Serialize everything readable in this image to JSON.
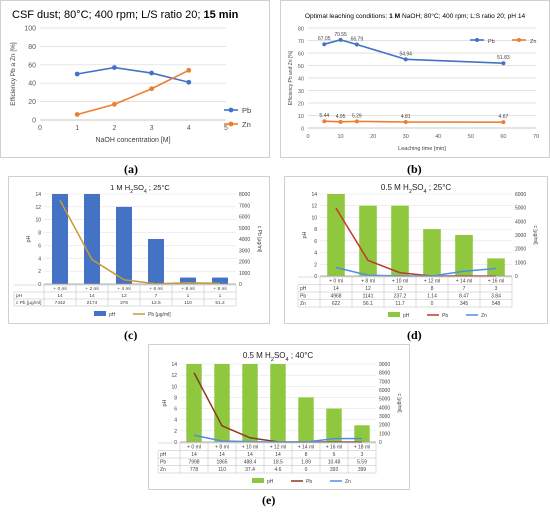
{
  "captions": {
    "a": "(a)",
    "b": "(b)",
    "c": "(c)",
    "d": "(d)",
    "e": "(e)"
  },
  "chart_data": [
    {
      "id": "a",
      "type": "line",
      "title": "CSF dust;  80°C; 400 rpm; L/S ratio 20; ",
      "title_bold": "15 min",
      "xlabel": "NaOH concentration [M]",
      "ylabel": "Efficiency Pb a Zn [%]",
      "x": [
        1,
        2,
        3,
        4
      ],
      "xlim": [
        0,
        5
      ],
      "ylim": [
        0,
        100
      ],
      "yticks": [
        0,
        20,
        40,
        60,
        80,
        100
      ],
      "xticks": [
        0,
        1,
        2,
        3,
        4,
        5
      ],
      "grid": true,
      "legend_position": "right",
      "series": [
        {
          "name": "Pb",
          "values": [
            50,
            57,
            51,
            41
          ],
          "color": "#4472c4"
        },
        {
          "name": "Zn",
          "values": [
            6,
            17,
            34,
            54
          ],
          "color": "#ed7d31"
        }
      ]
    },
    {
      "id": "b",
      "type": "line",
      "title_prefix": "Optimal leaching conditions: ",
      "title_bold": "1 M",
      "title": " NaOH;  80°C; 400 rpm; L:S ratio 20; pH 14",
      "xlabel": "Leaching time [min]",
      "ylabel": "Efficiency Pb and Zn [%]",
      "x": [
        5,
        10,
        15,
        30,
        60
      ],
      "xlim": [
        0,
        70
      ],
      "ylim": [
        0,
        80
      ],
      "yticks": [
        0,
        10,
        20,
        30,
        40,
        50,
        60,
        70,
        80
      ],
      "xticks": [
        0,
        10,
        20,
        30,
        40,
        50,
        60,
        70
      ],
      "grid": true,
      "legend_position": "top-right",
      "series": [
        {
          "name": "Pb",
          "values": [
            67.05,
            70.55,
            66.79,
            54.94,
            51.83
          ],
          "labels": [
            "67.05",
            "70.55",
            "66.79",
            "54.94",
            "51.83"
          ],
          "color": "#4472c4"
        },
        {
          "name": "Zn",
          "values": [
            5.44,
            4.95,
            5.29,
            4.81,
            4.67
          ],
          "labels": [
            "5.44",
            "4.95",
            "5.29",
            "4.81",
            "4.67"
          ],
          "color": "#ed7d31"
        }
      ]
    },
    {
      "id": "c",
      "type": "bar",
      "title": "1 M H2SO4 ; 25°C",
      "ylabel": "pH",
      "y2label": "c Pb [μg/ml]",
      "categories": [
        "+ 0 ml",
        "+ 2 ml",
        "+ 4 ml",
        "+ 6 ml",
        "+ 8 ml",
        "+ 8 ml"
      ],
      "ylim": [
        0,
        14
      ],
      "yticks": [
        0,
        2,
        4,
        6,
        8,
        10,
        12,
        14
      ],
      "y2lim": [
        0,
        8000
      ],
      "y2ticks": [
        0,
        1000,
        2000,
        3000,
        4000,
        5000,
        6000,
        7000,
        8000
      ],
      "bar_series": {
        "name": "pH",
        "values": [
          14,
          14,
          12,
          7,
          1,
          1
        ],
        "labels": [
          "14",
          "14",
          "12",
          "7",
          "1",
          "1"
        ],
        "color": "#4472c4"
      },
      "line_series": [
        {
          "name": "Pb [μg/ml]",
          "values": [
            7442,
            2174,
            376,
            12.5,
            110,
            51.2
          ],
          "labels": [
            "7442",
            "2174",
            "376",
            "12.5",
            "110",
            "51.2"
          ],
          "row_label": "c Pb [μg/ml]",
          "color": "#c59a3a"
        }
      ],
      "legend_position": "bottom"
    },
    {
      "id": "d",
      "type": "bar",
      "title": "0.5 M H2SO4 ; 25°C",
      "ylabel": "pH",
      "y2label": "c [μg/ml]",
      "categories": [
        "+ 0 ml",
        "+ 8 ml",
        "+ 10 ml",
        "+ 12 ml",
        "+ 14 ml",
        "+ 16 ml"
      ],
      "ylim": [
        0,
        14
      ],
      "yticks": [
        0,
        2,
        4,
        6,
        8,
        10,
        12,
        14
      ],
      "y2lim": [
        0,
        6000
      ],
      "y2ticks": [
        0,
        1000,
        2000,
        3000,
        4000,
        5000,
        6000
      ],
      "bar_series": {
        "name": "pH",
        "values": [
          14,
          12,
          12,
          8,
          7,
          3
        ],
        "labels": [
          "14",
          "12",
          "12",
          "8",
          "7",
          "3"
        ],
        "color": "#8fc73e"
      },
      "line_series": [
        {
          "name": "Pb",
          "values": [
            4968,
            1141,
            237.2,
            1.14,
            8.47,
            3.84
          ],
          "labels": [
            "4968",
            "1141",
            "237.2",
            "1.14",
            "8.47",
            "3.84"
          ],
          "color": "#c0392b"
        },
        {
          "name": "Zn",
          "values": [
            622,
            56.1,
            11.7,
            0,
            345,
            548
          ],
          "labels": [
            "622",
            "56.1",
            "11.7",
            "0",
            "345",
            "548"
          ],
          "color": "#4a90e2"
        }
      ],
      "legend_position": "bottom"
    },
    {
      "id": "e",
      "type": "bar",
      "title": "0.5 M H2SO4 ; 40°C",
      "ylabel": "pH",
      "y2label": "c [μg/ml]",
      "categories": [
        "+ 0 ml",
        "+ 8 ml",
        "+ 10 ml",
        "+ 12 ml",
        "+ 14 ml",
        "+ 16 ml",
        "+ 18 ml"
      ],
      "ylim": [
        0,
        14
      ],
      "yticks": [
        0,
        2,
        4,
        6,
        8,
        10,
        12,
        14
      ],
      "y2lim": [
        0,
        9000
      ],
      "y2ticks": [
        0,
        1000,
        2000,
        3000,
        4000,
        5000,
        6000,
        7000,
        8000,
        9000
      ],
      "bar_series": {
        "name": "pH",
        "values": [
          14,
          14,
          14,
          14,
          8,
          6,
          3
        ],
        "labels": [
          "14",
          "14",
          "14",
          "14",
          "8",
          "6",
          "3"
        ],
        "color": "#8fc73e"
      },
      "line_series": [
        {
          "name": "Pb",
          "values": [
            7998,
            1865,
            488.4,
            18.5,
            1.89,
            10.48,
            5.59
          ],
          "labels": [
            "7998",
            "1865",
            "488.4",
            "18.5",
            "1.89",
            "10.48",
            "5.59"
          ],
          "color": "#8b3a1a"
        },
        {
          "name": "Zn",
          "values": [
            778,
            110,
            37.4,
            4.6,
            0,
            393,
            399
          ],
          "labels": [
            "778",
            "110",
            "37.4",
            "4.6",
            "0",
            "393",
            "399"
          ],
          "color": "#4a90e2"
        }
      ],
      "legend_position": "bottom"
    }
  ]
}
